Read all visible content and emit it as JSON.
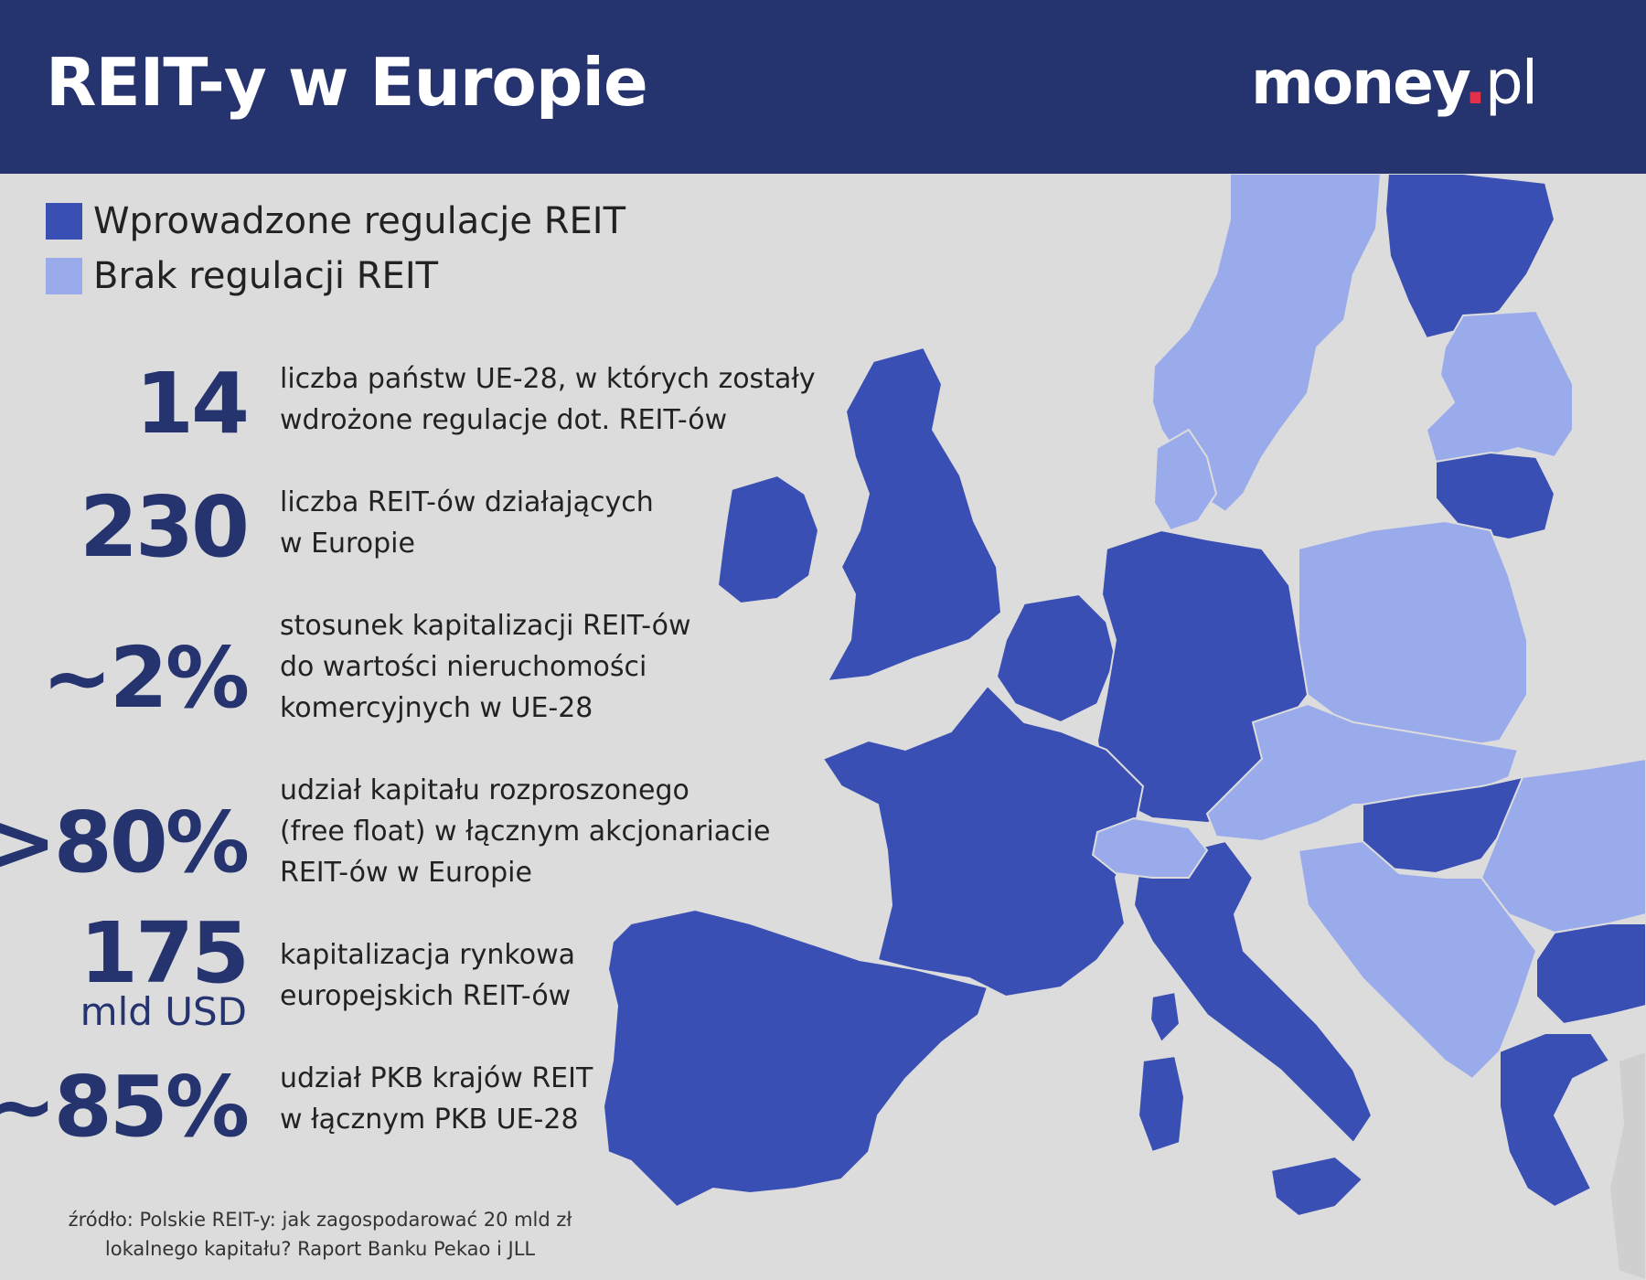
{
  "header": {
    "title": "REIT-y w Europie",
    "logo_main": "money",
    "logo_dot": ".",
    "logo_tld": "pl"
  },
  "colors": {
    "header_bg": "#25336f",
    "regulated": "#3a4fb3",
    "unregulated": "#9aabec",
    "sea": "#dcdcdc",
    "logo_dot": "#e5304b"
  },
  "legend": [
    {
      "label": "Wprowadzone regulacje REIT",
      "color": "#3a4fb3"
    },
    {
      "label": "Brak regulacji REIT",
      "color": "#9aabec"
    }
  ],
  "stats": [
    {
      "value": "14",
      "unit": "",
      "desc": [
        "liczba państw UE-28, w których zostały",
        "wdrożone regulacje dot. REIT-ów"
      ]
    },
    {
      "value": "230",
      "unit": "",
      "desc": [
        "liczba REIT-ów działających",
        "w Europie"
      ]
    },
    {
      "value": "~2%",
      "unit": "",
      "desc": [
        "stosunek kapitalizacji REIT-ów",
        "do wartości nieruchomości",
        "komercyjnych w UE-28"
      ]
    },
    {
      "value": ">80%",
      "unit": "",
      "desc": [
        "udział kapitału rozproszonego",
        "(free float) w łącznym akcjonariacie",
        "REIT-ów w Europie"
      ]
    },
    {
      "value": "175",
      "unit": "mld USD",
      "desc": [
        "kapitalizacja rynkowa",
        "europejskich REIT-ów"
      ]
    },
    {
      "value": "~85%",
      "unit": "",
      "desc": [
        "udział PKB krajów REIT",
        "w łącznym PKB UE-28"
      ]
    }
  ],
  "source": [
    "źródło: Polskie REIT-y: jak zagospodarować 20 mld zł",
    "lokalnego kapitału? Raport Banku Pekao i JLL"
  ],
  "map": {
    "regions": [
      {
        "name": "finland",
        "status": "regulated"
      },
      {
        "name": "sweden-norway",
        "status": "unregulated"
      },
      {
        "name": "estonia-latvia",
        "status": "unregulated"
      },
      {
        "name": "lithuania",
        "status": "regulated"
      },
      {
        "name": "denmark",
        "status": "unregulated"
      },
      {
        "name": "uk",
        "status": "regulated"
      },
      {
        "name": "ireland",
        "status": "regulated"
      },
      {
        "name": "netherlands-belgium",
        "status": "regulated"
      },
      {
        "name": "germany",
        "status": "regulated"
      },
      {
        "name": "poland",
        "status": "unregulated"
      },
      {
        "name": "france",
        "status": "regulated"
      },
      {
        "name": "spain-portugal",
        "status": "regulated"
      },
      {
        "name": "italy",
        "status": "regulated"
      },
      {
        "name": "switzerland",
        "status": "unregulated"
      },
      {
        "name": "czechia-slovakia-austria",
        "status": "unregulated"
      },
      {
        "name": "hungary",
        "status": "regulated"
      },
      {
        "name": "romania",
        "status": "unregulated"
      },
      {
        "name": "balkans",
        "status": "unregulated"
      },
      {
        "name": "bulgaria",
        "status": "regulated"
      },
      {
        "name": "greece",
        "status": "regulated"
      }
    ]
  }
}
